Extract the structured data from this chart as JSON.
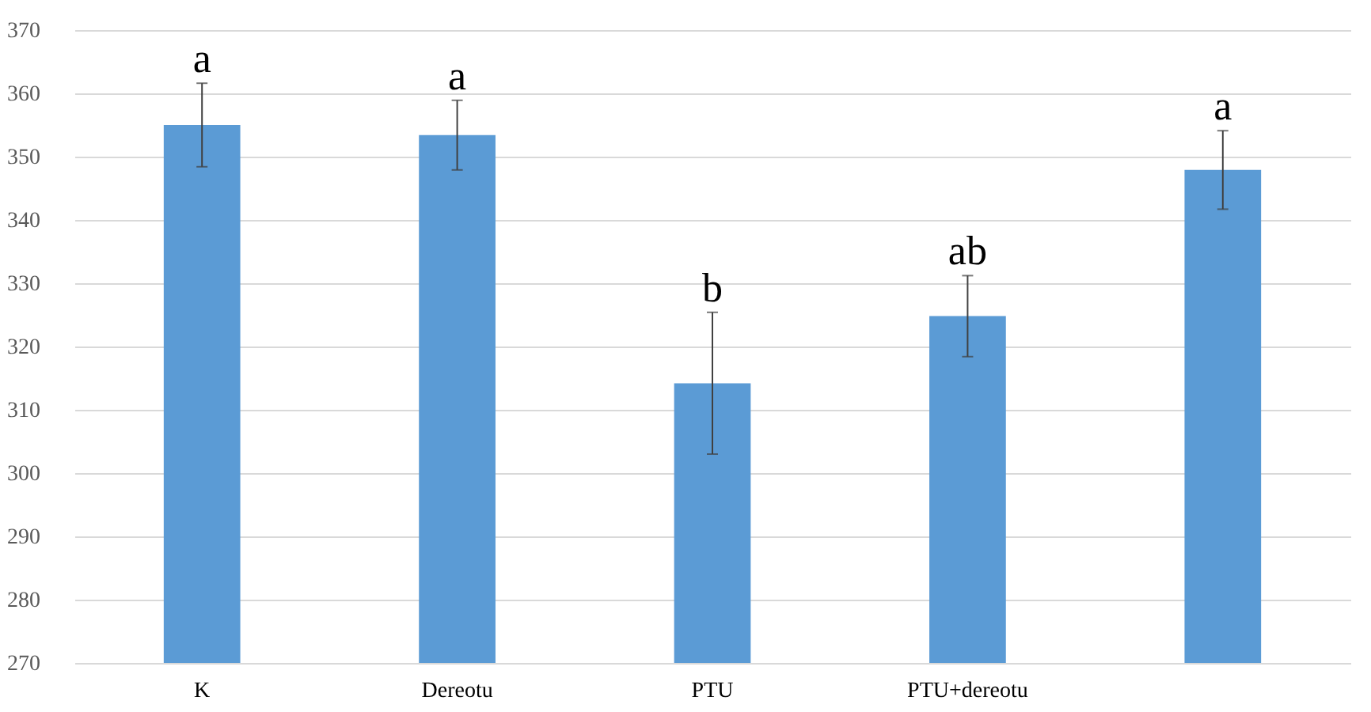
{
  "chart_data": {
    "type": "bar",
    "categories": [
      "K",
      "Dereotu",
      "PTU",
      "PTU+dereotu",
      null
    ],
    "values": [
      355,
      353.4,
      314.2,
      324.8,
      347.9
    ],
    "errors": [
      6.6,
      5.5,
      11.2,
      6.4,
      6.2
    ],
    "value_labels": [
      "a",
      "a",
      "b",
      "ab",
      "a"
    ],
    "color": "#5b9bd5",
    "ylim": [
      270,
      370
    ],
    "yticks": [
      270,
      280,
      290,
      300,
      310,
      320,
      330,
      340,
      350,
      360,
      370
    ],
    "grid": "y"
  }
}
